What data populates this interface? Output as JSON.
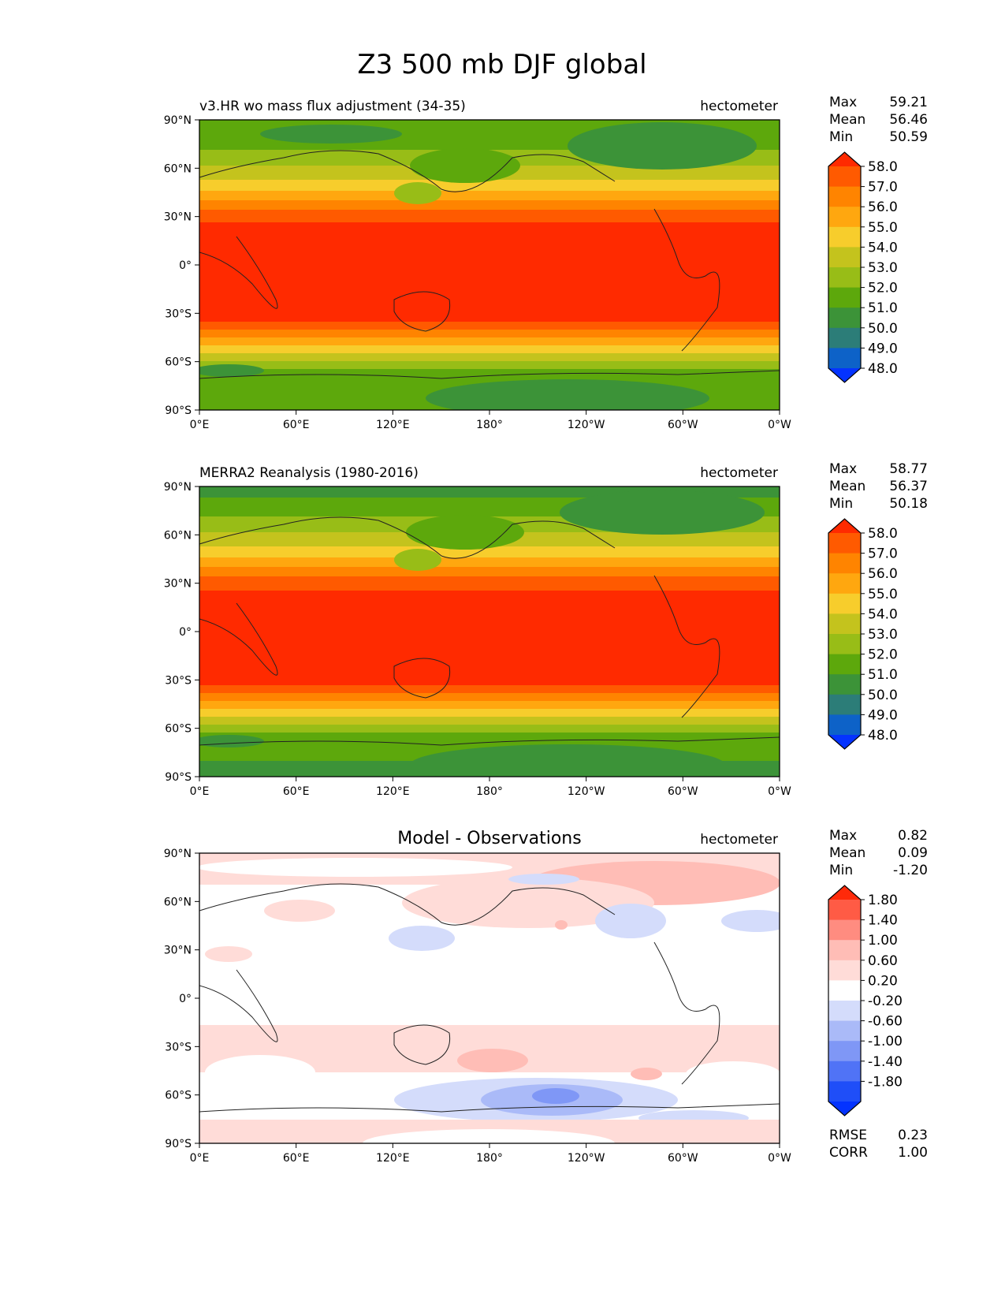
{
  "figure": {
    "title": "Z3 500 mb DJF global",
    "lat_labels": [
      "90°N",
      "60°N",
      "30°N",
      "0°",
      "30°S",
      "60°S",
      "90°S"
    ],
    "lon_labels": [
      "0°E",
      "60°E",
      "120°E",
      "180°",
      "120°W",
      "60°W",
      "0°W"
    ]
  },
  "chart_data": [
    {
      "type": "heatmap",
      "panel": "test",
      "title": "v3.HR wo mass flux adjustment (34-35)",
      "units": "hectometer",
      "stats": {
        "labels": [
          "Max",
          "Mean",
          "Min"
        ],
        "values": [
          "59.21",
          "56.46",
          "50.59"
        ]
      },
      "xrange": [
        0,
        360
      ],
      "yrange": [
        -90,
        90
      ],
      "levels": [
        "58.0",
        "57.0",
        "56.0",
        "55.0",
        "54.0",
        "53.0",
        "52.0",
        "51.0",
        "50.0",
        "49.0",
        "48.0"
      ],
      "colors": [
        "#ff2a00",
        "#ff5a00",
        "#ff8400",
        "#ffa70f",
        "#f7cd2c",
        "#c4c31d",
        "#98bd17",
        "#5da80c",
        "#3c9338",
        "#2c7d78",
        "#0d62c8",
        "#0433ff"
      ]
    },
    {
      "type": "heatmap",
      "panel": "reference",
      "title": "MERRA2 Reanalysis (1980-2016)",
      "units": "hectometer",
      "stats": {
        "labels": [
          "Max",
          "Mean",
          "Min"
        ],
        "values": [
          "58.77",
          "56.37",
          "50.18"
        ]
      },
      "xrange": [
        0,
        360
      ],
      "yrange": [
        -90,
        90
      ],
      "levels": [
        "58.0",
        "57.0",
        "56.0",
        "55.0",
        "54.0",
        "53.0",
        "52.0",
        "51.0",
        "50.0",
        "49.0",
        "48.0"
      ],
      "colors": [
        "#ff2a00",
        "#ff5a00",
        "#ff8400",
        "#ffa70f",
        "#f7cd2c",
        "#c4c31d",
        "#98bd17",
        "#5da80c",
        "#3c9338",
        "#2c7d78",
        "#0d62c8",
        "#0433ff"
      ]
    },
    {
      "type": "heatmap",
      "panel": "difference",
      "title": "Model - Observations",
      "units": "hectometer",
      "stats": {
        "labels": [
          "Max",
          "Mean",
          "Min"
        ],
        "values": [
          "0.82",
          "0.09",
          "-1.20"
        ]
      },
      "metrics": {
        "labels": [
          "RMSE",
          "CORR"
        ],
        "values": [
          "0.23",
          "1.00"
        ]
      },
      "xrange": [
        0,
        360
      ],
      "yrange": [
        -90,
        90
      ],
      "levels": [
        "1.80",
        "1.40",
        "1.00",
        "0.60",
        "0.20",
        "-0.20",
        "-0.60",
        "-1.00",
        "-1.40",
        "-1.80"
      ],
      "colors": [
        "#ff2a0a",
        "#ff5b45",
        "#ff8c80",
        "#ffbdb6",
        "#ffdcd8",
        "#ffffff",
        "#d4dcfb",
        "#aabaf8",
        "#7f97f6",
        "#5073f6",
        "#1f4ef8",
        "#0433ff"
      ]
    }
  ]
}
